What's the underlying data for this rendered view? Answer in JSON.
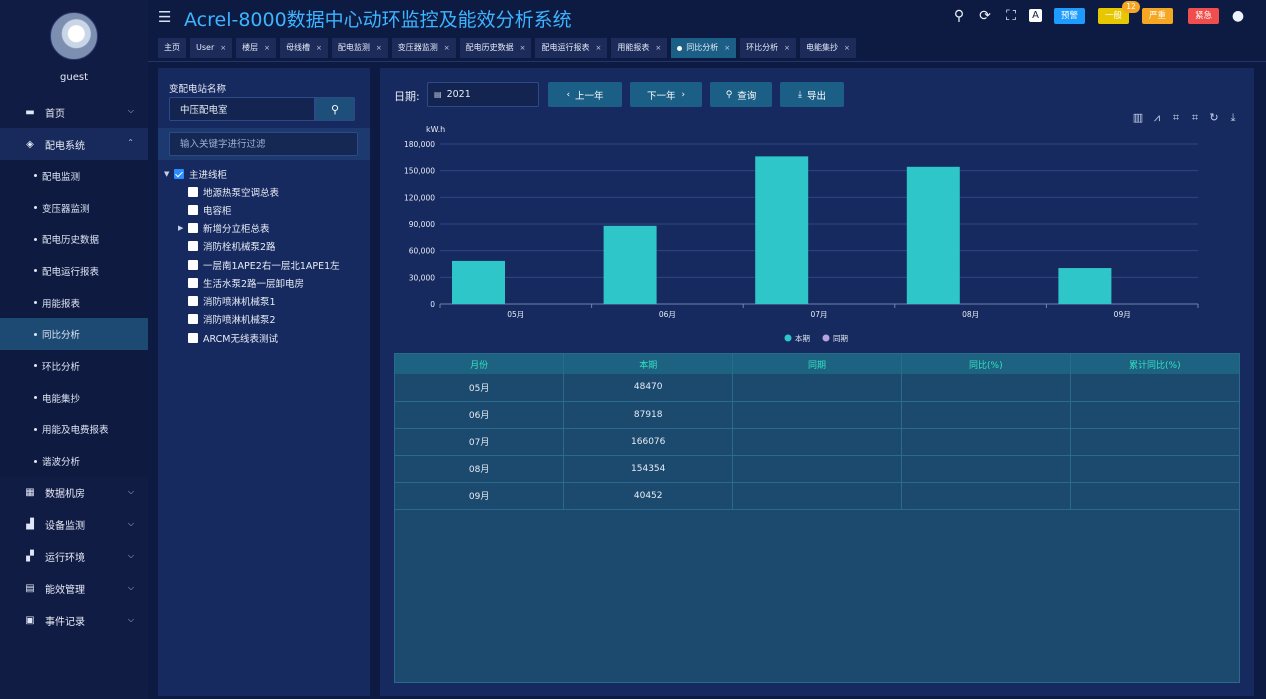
{
  "user": {
    "name": "guest"
  },
  "header": {
    "title": "Acrel-8000数据中心动环监控及能效分析系统",
    "alarm_count": "12"
  },
  "alarm_buttons": [
    {
      "label": "预警",
      "color": "#1e9bff"
    },
    {
      "label": "一般",
      "color": "#e6c700"
    },
    {
      "label": "严重",
      "color": "#f5a623"
    },
    {
      "label": "紧急",
      "color": "#f04d4d"
    }
  ],
  "sidebar": {
    "items": [
      {
        "label": "首页",
        "icon": "monitor-icon"
      },
      {
        "label": "配电系统",
        "icon": "power-icon"
      },
      {
        "label": "数据机房",
        "icon": "server-icon"
      },
      {
        "label": "设备监测",
        "icon": "bar-chart-icon"
      },
      {
        "label": "运行环境",
        "icon": "environment-icon"
      },
      {
        "label": "能效管理",
        "icon": "energy-icon"
      },
      {
        "label": "事件记录",
        "icon": "event-log-icon"
      }
    ],
    "sub_items": [
      "配电监测",
      "变压器监测",
      "配电历史数据",
      "配电运行报表",
      "用能报表",
      "同比分析",
      "环比分析",
      "电能集抄",
      "用能及电费报表",
      "谐波分析"
    ]
  },
  "tabs": [
    "主页",
    "User",
    "楼层",
    "母线槽",
    "配电监测",
    "变压器监测",
    "配电历史数据",
    "配电运行报表",
    "用能报表",
    "同比分析",
    "环比分析",
    "电能集抄"
  ],
  "left_panel": {
    "station_label": "变配电站名称",
    "station_value": "中压配电室",
    "filter_placeholder": "输入关键字进行过滤",
    "tree": [
      "主进线柜",
      "地源热泵空调总表",
      "电容柜",
      "新增分立柜总表",
      "消防栓机械泵2路",
      "一层南1APE2右一层北1APE1左",
      "生活水泵2路一层卸电房",
      "消防喷淋机械泵1",
      "消防喷淋机械泵2",
      "ARCM无线表测试"
    ]
  },
  "toolbar": {
    "date_label": "日期:",
    "date_value": "2021",
    "prev_label": "上一年",
    "next_label": "下一年",
    "query_label": "查询",
    "export_label": "导出"
  },
  "chart_data": {
    "type": "bar",
    "categories": [
      "05月",
      "06月",
      "07月",
      "08月",
      "09月"
    ],
    "series": [
      {
        "name": "本期",
        "values": [
          48470,
          87918,
          166076,
          154354,
          40452
        ],
        "color": "#2ec6c8"
      },
      {
        "name": "同期",
        "values": [
          null,
          null,
          null,
          null,
          null
        ],
        "color": "#b6a2de"
      }
    ],
    "ylabel": "kW.h",
    "ylim": [
      0,
      180000
    ],
    "yticks": [
      0,
      30000,
      60000,
      90000,
      120000,
      150000,
      180000
    ],
    "ytick_labels": [
      "0",
      "30,000",
      "60,000",
      "90,000",
      "120,000",
      "150,000",
      "180,000"
    ],
    "legend": "bottom-center",
    "grid": true
  },
  "table": {
    "headers": [
      "月份",
      "本期",
      "同期",
      "同比(%)",
      "累计同比(%)"
    ],
    "rows": [
      [
        "05月",
        "48470",
        "",
        "",
        ""
      ],
      [
        "06月",
        "87918",
        "",
        "",
        ""
      ],
      [
        "07月",
        "166076",
        "",
        "",
        ""
      ],
      [
        "08月",
        "154354",
        "",
        "",
        ""
      ],
      [
        "09月",
        "40452",
        "",
        "",
        ""
      ]
    ]
  }
}
